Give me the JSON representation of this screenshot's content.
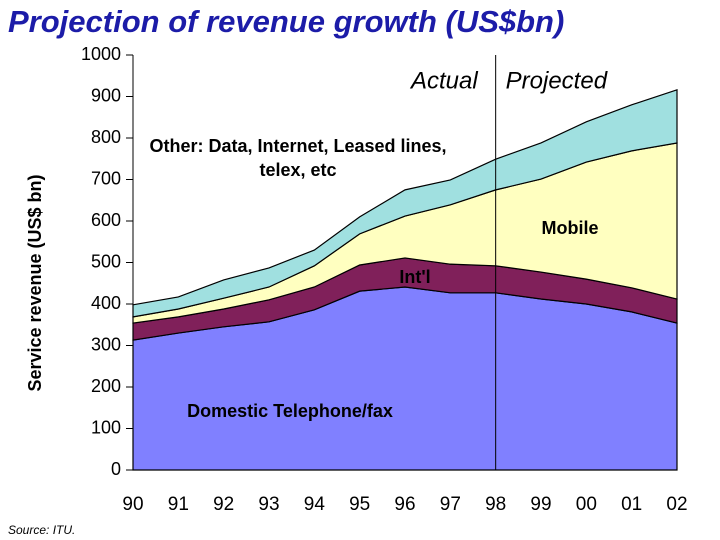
{
  "chart_data": {
    "type": "stacked_area",
    "title": "Projection of revenue growth (US$bn)",
    "y_label": "Service revenue (US$ bn)",
    "source": "Source:  ITU.",
    "annotations": [
      "Actual",
      "Projected"
    ],
    "divider_index": 8,
    "categories": [
      "90",
      "91",
      "92",
      "93",
      "94",
      "95",
      "96",
      "97",
      "98",
      "99",
      "00",
      "01",
      "02"
    ],
    "series": [
      {
        "name": "Domestic Telephone/fax",
        "color": "#8080ff",
        "values": [
          313,
          330,
          345,
          357,
          386,
          431,
          441,
          427,
          427,
          412,
          400,
          381,
          354
        ]
      },
      {
        "name": "Int'l",
        "color": "#80205a",
        "values": [
          41,
          39,
          43,
          53,
          55,
          63,
          70,
          69,
          65,
          65,
          60,
          58,
          58
        ]
      },
      {
        "name": "Mobile",
        "color": "#ffffc0",
        "values": [
          15,
          19,
          26,
          31,
          51,
          75,
          101,
          143,
          183,
          224,
          282,
          330,
          376
        ]
      },
      {
        "name": "Other: Data, Internet, Leased lines, telex, etc",
        "color": "#a0e0e0",
        "values": [
          29,
          29,
          44,
          46,
          38,
          41,
          63,
          60,
          74,
          87,
          97,
          111,
          128
        ]
      }
    ],
    "ylim": [
      0,
      1000
    ],
    "yticks": [
      0,
      100,
      200,
      300,
      400,
      500,
      600,
      700,
      800,
      900,
      1000
    ]
  }
}
